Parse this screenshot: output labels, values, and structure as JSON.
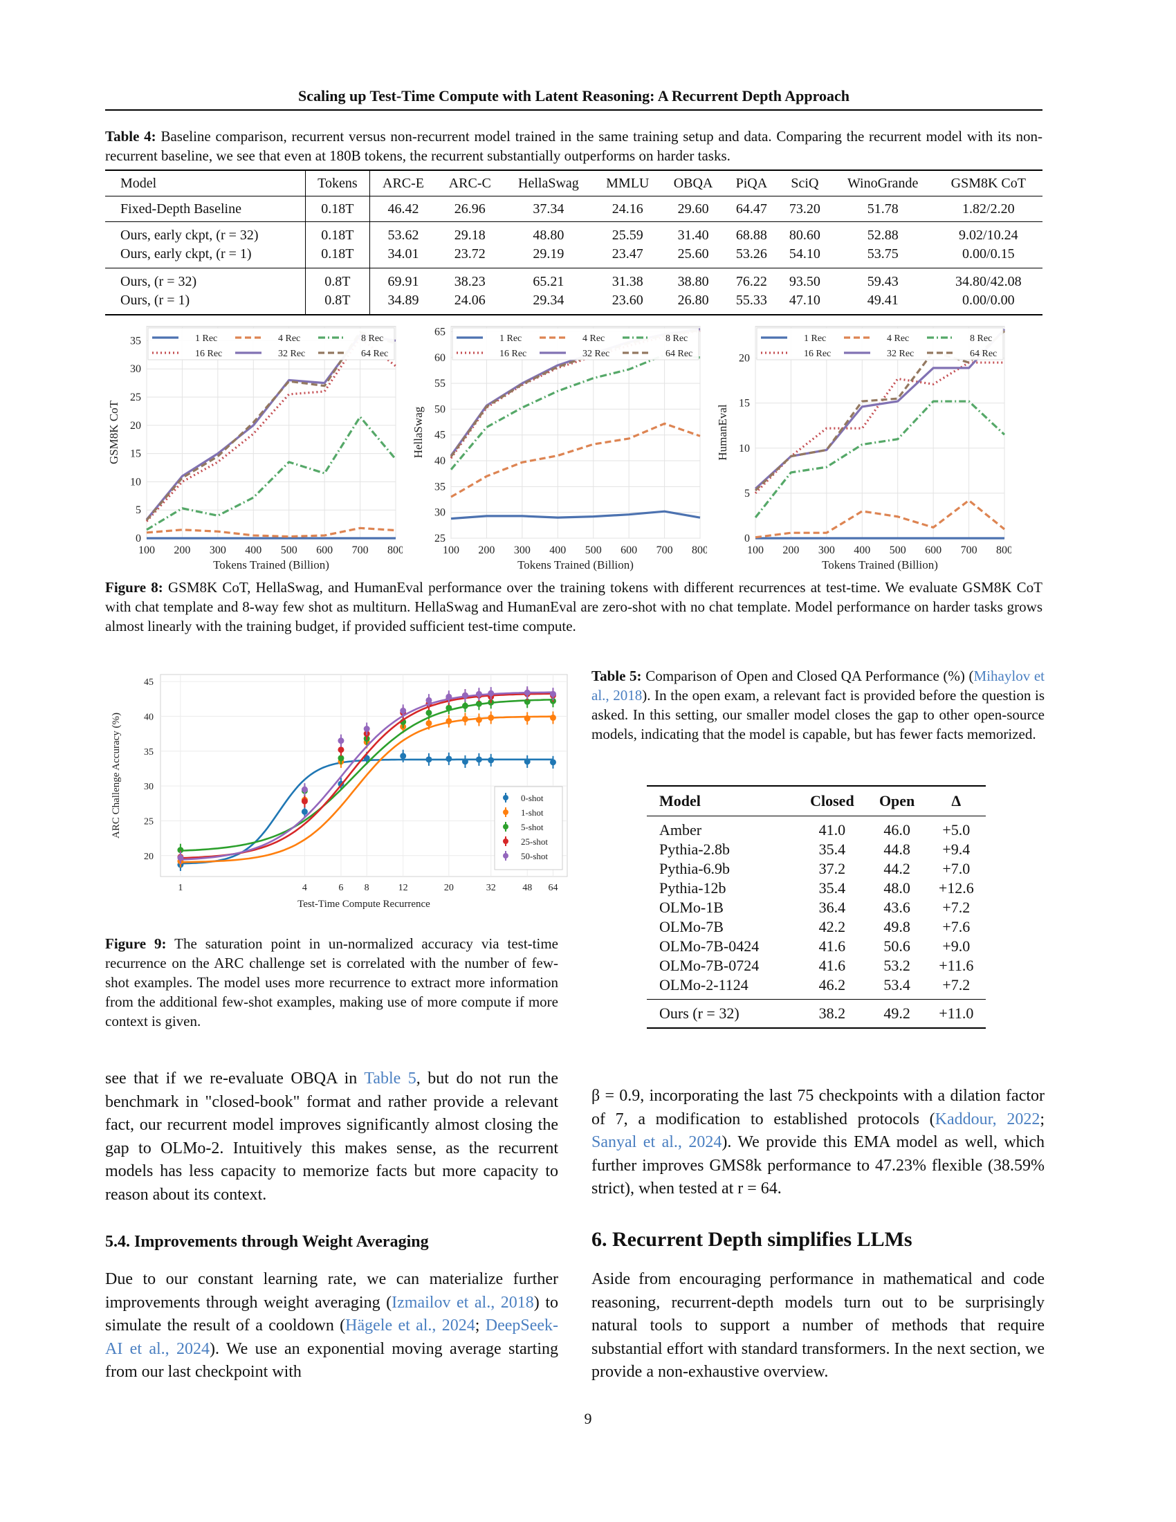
{
  "header": {
    "running_title": "Scaling up Test-Time Compute with Latent Reasoning: A Recurrent Depth Approach"
  },
  "table4": {
    "label": "Table 4:",
    "caption": "Baseline comparison, recurrent versus non-recurrent model trained in the same training setup and data. Comparing the recurrent model with its non-recurrent baseline, we see that even at 180B tokens, the recurrent substantially outperforms on harder tasks.",
    "columns": [
      "Model",
      "Tokens",
      "ARC-E",
      "ARC-C",
      "HellaSwag",
      "MMLU",
      "OBQA",
      "PiQA",
      "SciQ",
      "WinoGrande",
      "GSM8K CoT"
    ],
    "rows": [
      [
        "Fixed-Depth Baseline",
        "0.18T",
        "46.42",
        "26.96",
        "37.34",
        "24.16",
        "29.60",
        "64.47",
        "73.20",
        "51.78",
        "1.82/2.20"
      ],
      [
        "Ours, early ckpt, (r = 32)",
        "0.18T",
        "53.62",
        "29.18",
        "48.80",
        "25.59",
        "31.40",
        "68.88",
        "80.60",
        "52.88",
        "9.02/10.24"
      ],
      [
        "Ours, early ckpt, (r = 1)",
        "0.18T",
        "34.01",
        "23.72",
        "29.19",
        "23.47",
        "25.60",
        "53.26",
        "54.10",
        "53.75",
        "0.00/0.15"
      ],
      [
        "Ours, (r = 32)",
        "0.8T",
        "69.91",
        "38.23",
        "65.21",
        "31.38",
        "38.80",
        "76.22",
        "93.50",
        "59.43",
        "34.80/42.08"
      ],
      [
        "Ours, (r = 1)",
        "0.8T",
        "34.89",
        "24.06",
        "29.34",
        "23.60",
        "26.80",
        "55.33",
        "47.10",
        "49.41",
        "0.00/0.00"
      ]
    ]
  },
  "figure8": {
    "label": "Figure 8:",
    "caption": "GSM8K CoT, HellaSwag, and HumanEval performance over the training tokens with different recurrences at test-time. We evaluate GSM8K CoT with chat template and 8-way few shot as multiturn. HellaSwag and HumanEval are zero-shot with no chat template. Model performance on harder tasks grows almost linearly with the training budget, if provided sufficient test-time compute."
  },
  "figure9": {
    "label": "Figure 9:",
    "caption": "The saturation point in un-normalized accuracy via test-time recurrence on the ARC challenge set is correlated with the number of few-shot examples. The model uses more recurrence to extract more information from the additional few-shot examples, making use of more compute if more context is given."
  },
  "chart_data": [
    {
      "type": "line",
      "panel": "gsm8k",
      "xlabel": "Tokens Trained (Billion)",
      "ylabel": "GSM8K CoT",
      "x": [
        100,
        200,
        300,
        400,
        500,
        600,
        700,
        800
      ],
      "xticks": [
        100,
        200,
        300,
        400,
        500,
        600,
        700,
        800
      ],
      "yticks": [
        0,
        5,
        10,
        15,
        20,
        25,
        30,
        35
      ],
      "xlim": [
        100,
        800
      ],
      "ylim": [
        0,
        37.5
      ],
      "legend": "top",
      "series": [
        {
          "name": "1 Rec",
          "color": "#4c72b0",
          "dash": "solid",
          "values": [
            0,
            0,
            0,
            0,
            0,
            0,
            0,
            0
          ]
        },
        {
          "name": "4 Rec",
          "color": "#dd8452",
          "dash": "dashed",
          "values": [
            1.0,
            1.5,
            1.2,
            0.5,
            0.3,
            0.5,
            1.8,
            1.4
          ]
        },
        {
          "name": "8 Rec",
          "color": "#55a868",
          "dash": "dashdot",
          "values": [
            1.5,
            5.3,
            4.0,
            7.2,
            13.5,
            11.5,
            21.5,
            14.0
          ]
        },
        {
          "name": "16 Rec",
          "color": "#c44e52",
          "dash": "dotted",
          "values": [
            3.0,
            10.0,
            13.5,
            18.5,
            25.5,
            26.0,
            35.5,
            30.5
          ]
        },
        {
          "name": "32 Rec",
          "color": "#8172b3",
          "dash": "solid",
          "values": [
            3.3,
            11.0,
            15.0,
            20.0,
            28.0,
            27.5,
            36.0,
            35.0
          ]
        },
        {
          "name": "64 Rec",
          "color": "#937860",
          "dash": "dashed",
          "values": [
            3.2,
            10.7,
            14.5,
            20.5,
            27.8,
            27.0,
            36.5,
            34.5
          ]
        }
      ]
    },
    {
      "type": "line",
      "panel": "hellaswag",
      "xlabel": "Tokens Trained (Billion)",
      "ylabel": "HellaSwag",
      "x": [
        100,
        200,
        300,
        400,
        500,
        600,
        700,
        800
      ],
      "xticks": [
        100,
        200,
        300,
        400,
        500,
        600,
        700,
        800
      ],
      "yticks": [
        25,
        30,
        35,
        40,
        45,
        50,
        55,
        60,
        65
      ],
      "xlim": [
        100,
        800
      ],
      "ylim": [
        25,
        66
      ],
      "legend": "top",
      "series": [
        {
          "name": "1 Rec",
          "color": "#4c72b0",
          "dash": "solid",
          "values": [
            28.8,
            29.3,
            29.3,
            29.0,
            29.2,
            29.6,
            30.2,
            29.0
          ]
        },
        {
          "name": "4 Rec",
          "color": "#dd8452",
          "dash": "dashed",
          "values": [
            33.0,
            37.0,
            39.7,
            41.0,
            43.2,
            44.3,
            47.2,
            44.8
          ]
        },
        {
          "name": "8 Rec",
          "color": "#55a868",
          "dash": "dashdot",
          "values": [
            38.3,
            46.5,
            50.3,
            53.5,
            56.0,
            57.7,
            60.5,
            60.0
          ]
        },
        {
          "name": "16 Rec",
          "color": "#c44e52",
          "dash": "dotted",
          "values": [
            40.5,
            50.3,
            54.7,
            58.0,
            60.2,
            62.3,
            64.0,
            65.2
          ]
        },
        {
          "name": "32 Rec",
          "color": "#8172b3",
          "dash": "solid",
          "values": [
            41.0,
            50.7,
            55.0,
            58.5,
            60.8,
            63.0,
            64.5,
            65.5
          ]
        },
        {
          "name": "64 Rec",
          "color": "#937860",
          "dash": "dashed",
          "values": [
            40.8,
            50.5,
            54.8,
            58.2,
            60.5,
            62.8,
            64.3,
            65.3
          ]
        }
      ]
    },
    {
      "type": "line",
      "panel": "humaneval",
      "xlabel": "Tokens Trained (Billion)",
      "ylabel": "HumanEval",
      "x": [
        100,
        200,
        300,
        400,
        500,
        600,
        700,
        800
      ],
      "xticks": [
        100,
        200,
        300,
        400,
        500,
        600,
        700,
        800
      ],
      "yticks": [
        0,
        5,
        10,
        15,
        20
      ],
      "xlim": [
        100,
        800
      ],
      "ylim": [
        0,
        23.5
      ],
      "legend": "top",
      "series": [
        {
          "name": "1 Rec",
          "color": "#4c72b0",
          "dash": "solid",
          "values": [
            0,
            0,
            0,
            0,
            0,
            0,
            0,
            0
          ]
        },
        {
          "name": "4 Rec",
          "color": "#dd8452",
          "dash": "dashed",
          "values": [
            0.1,
            0.6,
            0.6,
            3.0,
            2.4,
            1.2,
            4.2,
            1.0
          ]
        },
        {
          "name": "8 Rec",
          "color": "#55a868",
          "dash": "dashdot",
          "values": [
            2.3,
            7.3,
            7.9,
            10.4,
            11.0,
            15.2,
            15.2,
            11.5
          ]
        },
        {
          "name": "16 Rec",
          "color": "#c44e52",
          "dash": "dotted",
          "values": [
            5.0,
            9.1,
            12.2,
            12.2,
            17.7,
            17.1,
            19.5,
            19.5
          ]
        },
        {
          "name": "32 Rec",
          "color": "#8172b3",
          "dash": "solid",
          "values": [
            5.5,
            9.1,
            9.8,
            14.6,
            15.2,
            18.9,
            18.9,
            23.2
          ]
        },
        {
          "name": "64 Rec",
          "color": "#937860",
          "dash": "dashed",
          "values": [
            5.3,
            9.1,
            9.8,
            15.2,
            15.5,
            20.7,
            19.5,
            23.0
          ]
        }
      ]
    },
    {
      "type": "scatter",
      "panel": "arc",
      "xlabel": "Test-Time Compute Recurrence",
      "ylabel": "ARC Challenge Accuracy (%)",
      "xscale": "log",
      "x": [
        1,
        4,
        6,
        8,
        12,
        16,
        20,
        24,
        28,
        32,
        48,
        64
      ],
      "xticks": [
        1,
        4,
        6,
        8,
        12,
        20,
        32,
        48,
        64
      ],
      "yticks": [
        20,
        25,
        30,
        35,
        40,
        45
      ],
      "ylim": [
        17,
        46
      ],
      "legend": "lower right",
      "series": [
        {
          "name": "0-shot",
          "color": "#1f77b4",
          "values": [
            18.7,
            26.3,
            30.3,
            34.0,
            34.3,
            33.8,
            33.9,
            33.5,
            33.8,
            33.7,
            33.5,
            33.4
          ],
          "fit": [
            18.8,
            33.8,
            3.0,
            5.0
          ]
        },
        {
          "name": "1-shot",
          "color": "#ff7f0e",
          "values": [
            19.2,
            28.0,
            33.5,
            36.3,
            38.5,
            39.0,
            39.3,
            39.6,
            39.5,
            39.8,
            39.7,
            39.8
          ],
          "fit": [
            19.0,
            40.0,
            7.0,
            3.0
          ]
        },
        {
          "name": "5-shot",
          "color": "#2ca02c",
          "values": [
            20.8,
            29.3,
            34.0,
            36.8,
            39.2,
            40.5,
            41.2,
            41.5,
            41.8,
            42.0,
            42.1,
            42.2
          ],
          "fit": [
            20.5,
            42.5,
            7.0,
            2.4
          ]
        },
        {
          "name": "25-shot",
          "color": "#d62728",
          "values": [
            19.8,
            27.8,
            35.2,
            37.5,
            40.5,
            41.8,
            42.5,
            43.0,
            43.0,
            42.8,
            43.2,
            43.0
          ],
          "fit": [
            19.5,
            43.3,
            6.5,
            2.7
          ]
        },
        {
          "name": "50-shot",
          "color": "#9467bd",
          "values": [
            19.7,
            29.5,
            36.5,
            38.2,
            40.8,
            42.3,
            42.8,
            43.0,
            43.2,
            43.3,
            43.4,
            43.2
          ],
          "fit": [
            19.2,
            43.5,
            6.0,
            2.6
          ]
        }
      ]
    }
  ],
  "table5": {
    "label": "Table 5:",
    "caption_pre": "Comparison of Open and Closed QA Performance (%) (",
    "caption_link": "Mihaylov et al., 2018",
    "caption_post": "). In the open exam, a relevant fact is provided before the question is asked. In this setting, our smaller model closes the gap to other open-source models, indicating that the model is capable, but has fewer facts memorized.",
    "columns": [
      "Model",
      "Closed",
      "Open",
      "Δ"
    ],
    "rows": [
      [
        "Amber",
        "41.0",
        "46.0",
        "+5.0"
      ],
      [
        "Pythia-2.8b",
        "35.4",
        "44.8",
        "+9.4"
      ],
      [
        "Pythia-6.9b",
        "37.2",
        "44.2",
        "+7.0"
      ],
      [
        "Pythia-12b",
        "35.4",
        "48.0",
        "+12.6"
      ],
      [
        "OLMo-1B",
        "36.4",
        "43.6",
        "+7.2"
      ],
      [
        "OLMo-7B",
        "42.2",
        "49.8",
        "+7.6"
      ],
      [
        "OLMo-7B-0424",
        "41.6",
        "50.6",
        "+9.0"
      ],
      [
        "OLMo-7B-0724",
        "41.6",
        "53.2",
        "+11.6"
      ],
      [
        "OLMo-2-1124",
        "46.2",
        "53.4",
        "+7.2"
      ]
    ],
    "ours": [
      "Ours (r = 32)",
      "38.2",
      "49.2",
      "+11.0"
    ]
  },
  "left_text": {
    "p1_pre": "see that if we re-evaluate OBQA in ",
    "p1_link": "Table 5",
    "p1_post": ", but do not run the benchmark in \"closed-book\" format and rather provide a relevant fact, our recurrent model improves significantly almost closing the gap to OLMo-2. Intuitively this makes sense, as the recurrent models has less capacity to memorize facts but more capacity to reason about its context.",
    "heading": "5.4. Improvements through Weight Averaging",
    "p2_a": "Due to our constant learning rate, we can materialize further improvements through weight averaging (",
    "p2_l1": "Izmailov et al., 2018",
    "p2_b": ") to simulate the result of a cooldown (",
    "p2_l2": "Hägele et al., 2024",
    "p2_c": "; ",
    "p2_l3": "DeepSeek-AI et al., 2024",
    "p2_d": "). We use an exponential moving average starting from our last checkpoint with"
  },
  "right_text": {
    "p1_a": "β = 0.9, incorporating the last 75 checkpoints with a dilation factor of 7, a modification to established protocols (",
    "p1_l1": "Kaddour, 2022",
    "p1_b": "; ",
    "p1_l2": "Sanyal et al., 2024",
    "p1_c": "). We provide this EMA model as well, which further improves GMS8k performance to 47.23% flexible (38.59% strict), when tested at r = 64.",
    "heading": "6. Recurrent Depth simplifies LLMs",
    "p2": "Aside from encouraging performance in mathematical and code reasoning, recurrent-depth models turn out to be surprisingly natural tools to support a number of methods that require substantial effort with standard transformers. In the next section, we provide a non-exhaustive overview."
  },
  "page_number": "9"
}
